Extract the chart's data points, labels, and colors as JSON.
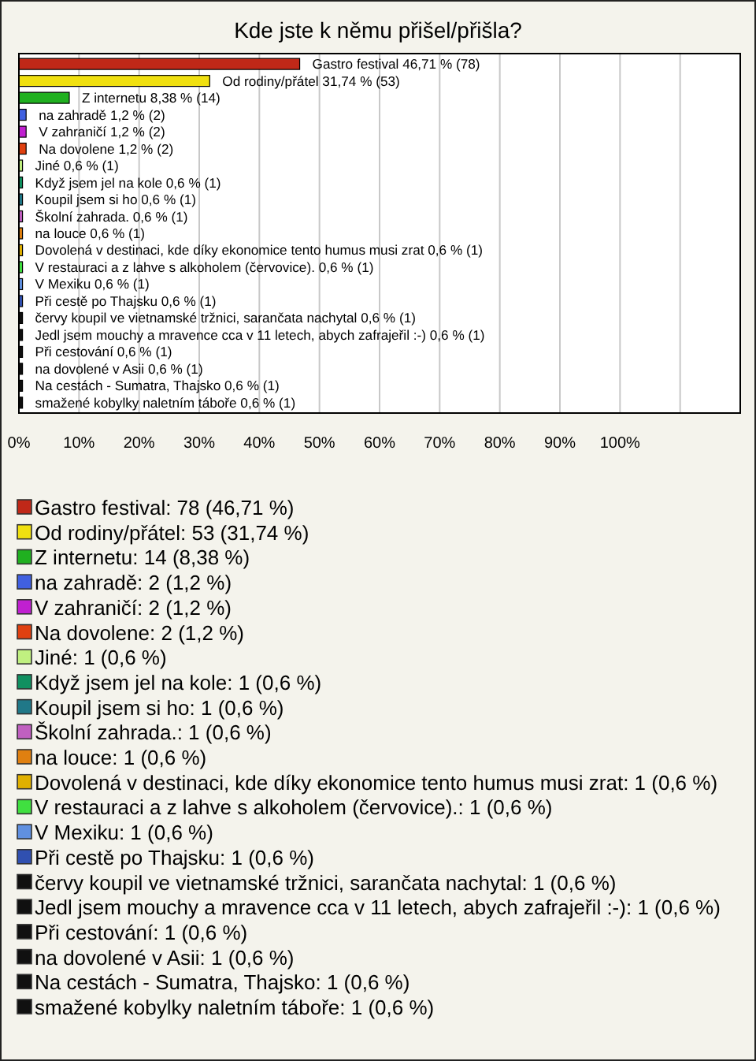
{
  "chart_data": [
    {
      "type": "bar",
      "orientation": "horizontal",
      "title": "Kde jste k němu přišel/přišla?",
      "categories": [
        "Gastro festival",
        "Od rodiny/přátel",
        "Z internetu",
        "na zahradě",
        "V zahraničí",
        "Na dovolene",
        "Jiné",
        "Když jsem jel na kole",
        "Koupil jsem si ho",
        "Školní zahrada.",
        "na louce",
        "Dovolená v destinaci, kde díky ekonomice tento humus musi zrat",
        "V restauraci a z lahve s alkoholem (červovice).",
        "V Mexiku",
        "Při cestě po Thajsku",
        "červy koupil ve vietnamské tržnici, sarančata nachytal",
        "Jedl jsem mouchy a mravence cca v 11 letech, abych zafrajeřil :-)",
        "Při cestování",
        "na dovolené v Asii",
        "Na cestách - Sumatra, Thajsko",
        "smažené kobylky naletním táboře"
      ],
      "values": [
        46.71,
        31.74,
        8.38,
        1.2,
        1.2,
        1.2,
        0.6,
        0.6,
        0.6,
        0.6,
        0.6,
        0.6,
        0.6,
        0.6,
        0.6,
        0.6,
        0.6,
        0.6,
        0.6,
        0.6,
        0.6
      ],
      "value_labels": [
        "46,71 % (78)",
        "31,74 % (53)",
        "8,38 % (14)",
        "1,2 % (2)",
        "1,2 % (2)",
        "1,2 % (2)",
        "0,6 % (1)",
        "0,6 % (1)",
        "0,6 % (1)",
        "0,6 % (1)",
        "0,6 % (1)",
        "0,6 % (1)",
        "0,6 % (1)",
        "0,6 % (1)",
        "0,6 % (1)",
        "0,6 % (1)",
        "0,6 % (1)",
        "0,6 % (1)",
        "0,6 % (1)",
        "0,6 % (1)",
        "0,6 % (1)"
      ],
      "colors": [
        "#c02818",
        "#f0e010",
        "#20b020",
        "#4060e0",
        "#c020d0",
        "#e04010",
        "#c0f080",
        "#109060",
        "#207888",
        "#c060c0",
        "#e08010",
        "#e0b000",
        "#40e040",
        "#6090e0",
        "#3050b0",
        "#101010",
        "#101010",
        "#101010",
        "#101010",
        "#101010",
        "#101010"
      ],
      "xlim": [
        0,
        120
      ],
      "xticks": [
        {
          "value": 0,
          "label": "0%"
        },
        {
          "value": 10,
          "label": "10%"
        },
        {
          "value": 20,
          "label": "20%"
        },
        {
          "value": 30,
          "label": "30%"
        },
        {
          "value": 40,
          "label": "40%"
        },
        {
          "value": 50,
          "label": "50%"
        },
        {
          "value": 60,
          "label": "60%"
        },
        {
          "value": 70,
          "label": "70%"
        },
        {
          "value": 80,
          "label": "80%"
        },
        {
          "value": 90,
          "label": "90%"
        },
        {
          "value": 100,
          "label": "100%"
        },
        {
          "value": 110,
          "label": null
        }
      ],
      "grid": "x",
      "legend": false
    },
    {
      "type": "other",
      "annotations": [
        "Gastro festival: 78 (46,71 %)",
        "Od rodiny/přátel: 53 (31,74 %)",
        "Z internetu: 14 (8,38 %)",
        "na zahradě: 2 (1,2 %)",
        "V zahraničí: 2 (1,2 %)",
        "Na dovolene: 2 (1,2 %)",
        "Jiné: 1 (0,6 %)",
        "Když jsem jel na kole: 1 (0,6 %)",
        "Koupil jsem si ho: 1 (0,6 %)",
        "Školní zahrada.: 1 (0,6 %)",
        "na louce: 1 (0,6 %)",
        "Dovolená v destinaci, kde díky ekonomice tento humus musi zrat: 1 (0,6 %)",
        "V restauraci a z lahve s alkoholem (červovice).: 1 (0,6 %)",
        "V Mexiku: 1 (0,6 %)",
        "Při cestě po Thajsku: 1 (0,6 %)",
        "červy koupil ve vietnamské tržnici, sarančata nachytal: 1 (0,6 %)",
        "Jedl jsem mouchy a mravence cca v 11 letech, abych zafrajeřil :-): 1 (0,6 %)",
        "Při cestování: 1 (0,6 %)",
        "na dovolené v Asii: 1 (0,6 %)",
        "Na cestách - Sumatra, Thajsko: 1 (0,6 %)",
        "smažené kobylky naletním táboře: 1 (0,6 %)"
      ],
      "colors": [
        "#c02818",
        "#f0e010",
        "#20b020",
        "#4060e0",
        "#c020d0",
        "#e04010",
        "#c0f080",
        "#109060",
        "#207888",
        "#c060c0",
        "#e08010",
        "#e0b000",
        "#40e040",
        "#6090e0",
        "#3050b0",
        "#101010",
        "#101010",
        "#101010",
        "#101010",
        "#101010",
        "#101010"
      ]
    }
  ]
}
